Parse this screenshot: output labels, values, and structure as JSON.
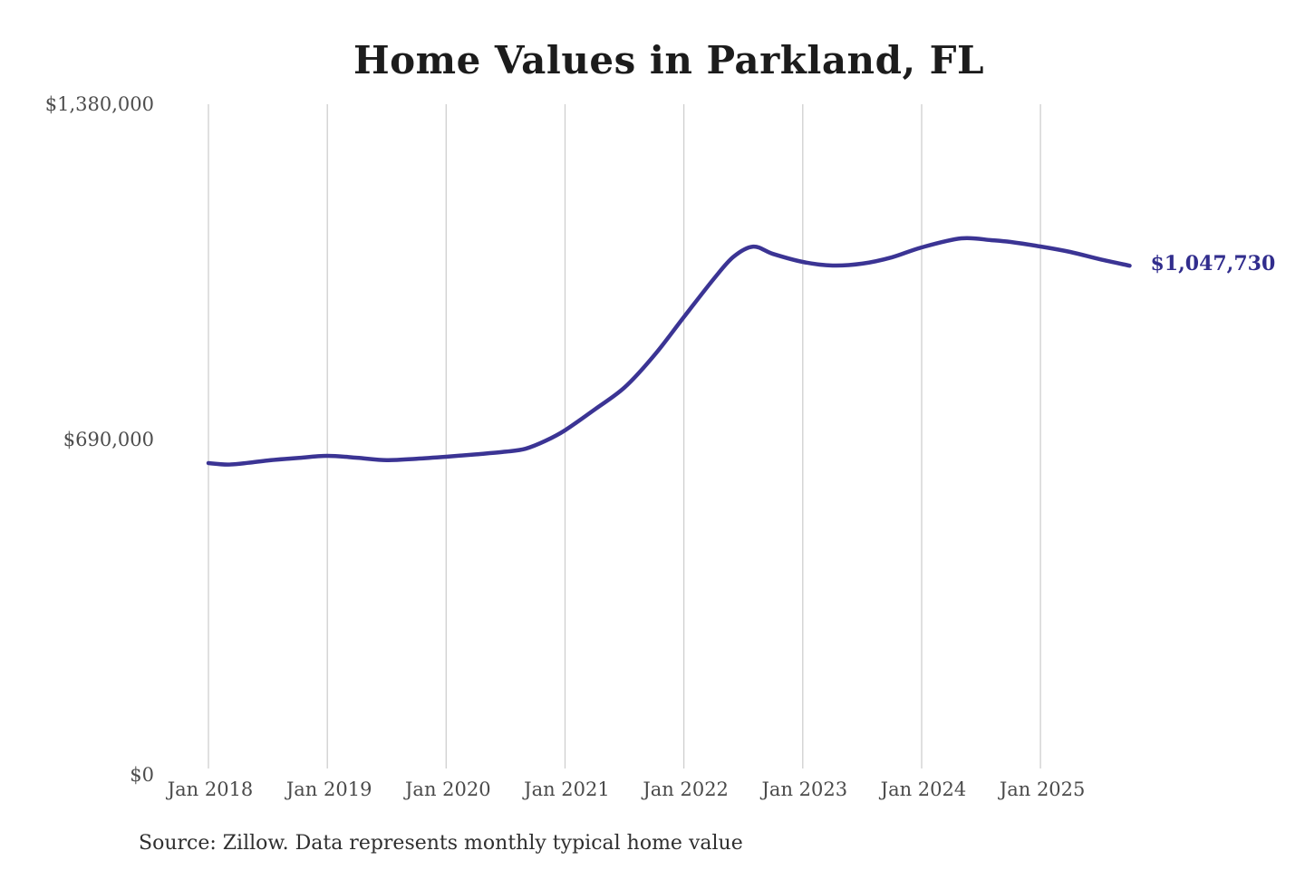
{
  "chart": {
    "title": "Home Values in Parkland, FL",
    "latest_value_label": "$1,047,730",
    "source_note": "Source: Zillow. Data represents monthly typical home value"
  },
  "colors": {
    "line": "#3b3494",
    "latest_label": "#312d8d",
    "gridline": "#cfcfcf",
    "tick_text": "#4a4a4a",
    "title_text": "#1c1c1c"
  },
  "chart_data": {
    "type": "line",
    "title": "Home Values in Parkland, FL",
    "xlabel": "",
    "ylabel": "",
    "ylim": [
      0,
      1380000
    ],
    "grid": "vertical-only",
    "legend": "none",
    "y_ticks": [
      {
        "value": 0,
        "label": "$0"
      },
      {
        "value": 690000,
        "label": "$690,000"
      },
      {
        "value": 1380000,
        "label": "$1,380,000"
      }
    ],
    "x_ticks": [
      "Jan 2018",
      "Jan 2019",
      "Jan 2020",
      "Jan 2021",
      "Jan 2022",
      "Jan 2023",
      "Jan 2024",
      "Jan 2025"
    ],
    "x_range": [
      "2018-01",
      "2025-10"
    ],
    "latest_value": 1047730,
    "latest_value_label": "$1,047,730",
    "source": "Source: Zillow. Data represents monthly typical home value",
    "series": [
      {
        "name": "Monthly typical home value",
        "points": [
          [
            "2018-01",
            641500
          ],
          [
            "2018-03",
            638500
          ],
          [
            "2018-05",
            642000
          ],
          [
            "2018-07",
            647000
          ],
          [
            "2018-10",
            652000
          ],
          [
            "2019-01",
            656400
          ],
          [
            "2019-04",
            652500
          ],
          [
            "2019-07",
            647600
          ],
          [
            "2019-10",
            650500
          ],
          [
            "2020-01",
            654500
          ],
          [
            "2020-04",
            659500
          ],
          [
            "2020-07",
            665000
          ],
          [
            "2020-09",
            671000
          ],
          [
            "2020-11",
            687000
          ],
          [
            "2021-01",
            709000
          ],
          [
            "2021-04",
            752000
          ],
          [
            "2021-07",
            797000
          ],
          [
            "2021-10",
            863000
          ],
          [
            "2022-01",
            942000
          ],
          [
            "2022-04",
            1020000
          ],
          [
            "2022-06",
            1066000
          ],
          [
            "2022-08",
            1087000
          ],
          [
            "2022-10",
            1072000
          ],
          [
            "2023-01",
            1055500
          ],
          [
            "2023-04",
            1048000
          ],
          [
            "2023-07",
            1052000
          ],
          [
            "2023-10",
            1065000
          ],
          [
            "2024-01",
            1085300
          ],
          [
            "2024-05",
            1104000
          ],
          [
            "2024-08",
            1100300
          ],
          [
            "2024-10",
            1096500
          ],
          [
            "2025-01",
            1087200
          ],
          [
            "2025-04",
            1076000
          ],
          [
            "2025-07",
            1061000
          ],
          [
            "2025-10",
            1047730
          ]
        ]
      }
    ]
  }
}
